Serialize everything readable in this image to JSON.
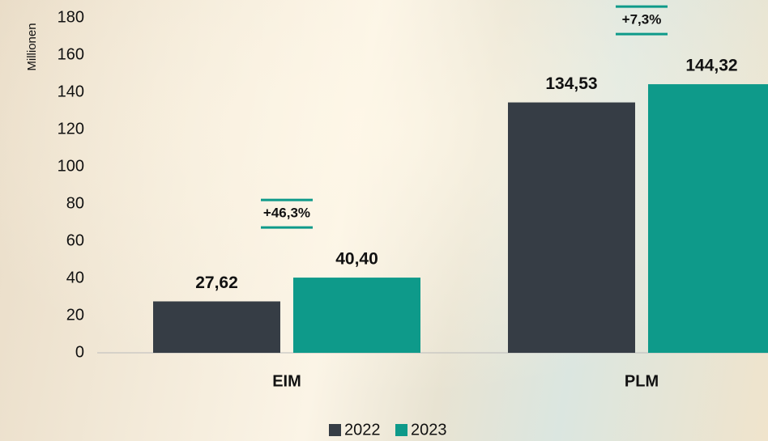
{
  "chart_data": {
    "type": "bar",
    "y_axis_label": "Millionen",
    "categories": [
      "EIM",
      "PLM"
    ],
    "series": [
      {
        "name": "2022",
        "color": "#363d45",
        "values": [
          27.62,
          134.53
        ],
        "value_labels": [
          "27,62",
          "134,53"
        ]
      },
      {
        "name": "2023",
        "color": "#0e9a8a",
        "values": [
          40.4,
          144.32
        ],
        "value_labels": [
          "40,40",
          "144,32"
        ]
      }
    ],
    "annotations": [
      "+46,3%",
      "+7,3%"
    ],
    "annotation_color": "#0e9a8a",
    "ylim": [
      0,
      180
    ],
    "yticks": [
      0,
      20,
      40,
      60,
      80,
      100,
      120,
      140,
      160,
      180
    ],
    "grid": false,
    "legend": "bottom"
  }
}
